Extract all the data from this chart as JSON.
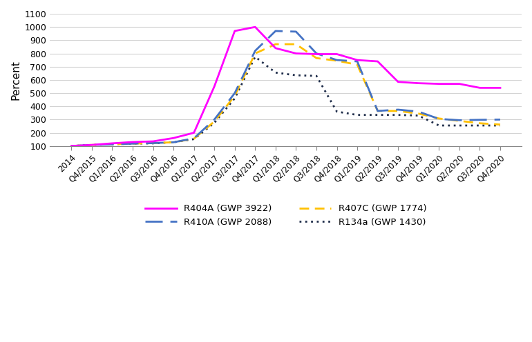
{
  "x_labels": [
    "2014",
    "Q4/2015",
    "Q1/2016",
    "Q2/2016",
    "Q3/2016",
    "Q4/2016",
    "Q1/2017",
    "Q2/2017",
    "Q3/2017",
    "Q4/2017",
    "Q1/2018",
    "Q2/2018",
    "Q3/2018",
    "Q4/2018",
    "Q1/2019",
    "Q2/2019",
    "Q3/2019",
    "Q4/2019",
    "Q1/2020",
    "Q2/2020",
    "Q3/2020",
    "Q4/2020"
  ],
  "R404A": [
    100,
    108,
    120,
    130,
    135,
    160,
    200,
    550,
    970,
    1000,
    840,
    800,
    795,
    795,
    750,
    740,
    585,
    575,
    570,
    570,
    540,
    540
  ],
  "R410A": [
    100,
    108,
    112,
    118,
    122,
    128,
    158,
    300,
    500,
    820,
    970,
    965,
    800,
    750,
    740,
    365,
    375,
    360,
    305,
    295,
    298,
    300
  ],
  "R407C": [
    100,
    108,
    113,
    118,
    122,
    128,
    155,
    285,
    480,
    800,
    870,
    870,
    765,
    745,
    715,
    365,
    365,
    345,
    308,
    290,
    272,
    262
  ],
  "R134a": [
    100,
    108,
    113,
    118,
    120,
    128,
    152,
    275,
    460,
    775,
    655,
    635,
    630,
    360,
    335,
    335,
    335,
    330,
    255,
    255,
    255,
    255
  ],
  "ylabel": "Percent",
  "ylim": [
    100,
    1100
  ],
  "yticks": [
    100,
    200,
    300,
    400,
    500,
    600,
    700,
    800,
    900,
    1000,
    1100
  ],
  "R404A_color": "#FF00FF",
  "R410A_color": "#4472C4",
  "R407C_color": "#FFC000",
  "R134a_color": "#1F2D4A",
  "R404A_label": "R404A (GWP 3922)",
  "R410A_label": "R410A (GWP 2088)",
  "R407C_label": "R407C (GWP 1774)",
  "R134a_label": "R134a (GWP 1430)",
  "figsize": [
    7.7,
    4.96
  ],
  "dpi": 100
}
